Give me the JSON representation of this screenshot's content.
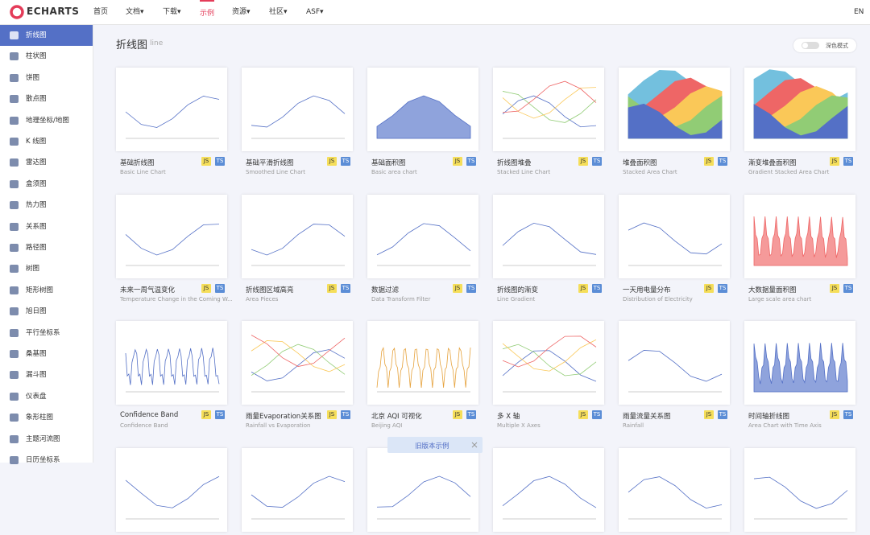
{
  "nav": {
    "logo": "ECHARTS",
    "items": [
      "首页",
      "文档▾",
      "下载▾",
      "示例",
      "资源▾",
      "社区▾",
      "ASF▾"
    ],
    "active": 3,
    "lang": "EN"
  },
  "sidebar": {
    "items": [
      "折线图",
      "柱状图",
      "饼图",
      "散点图",
      "地理坐标/地图",
      "K 线图",
      "雷达图",
      "盒须图",
      "热力图",
      "关系图",
      "路径图",
      "树图",
      "矩形树图",
      "旭日图",
      "平行坐标系",
      "桑基图",
      "漏斗图",
      "仪表盘",
      "象形柱图",
      "主题河流图",
      "日历坐标系"
    ],
    "active": 0
  },
  "header": {
    "title": "折线图",
    "subtitle": "line",
    "dark_mode": "深色模式"
  },
  "badges": [
    "JS",
    "TS"
  ],
  "cards": [
    {
      "title": "基础折线图",
      "subtitle": "Basic Line Chart"
    },
    {
      "title": "基础平滑折线图",
      "subtitle": "Smoothed Line Chart"
    },
    {
      "title": "基础面积图",
      "subtitle": "Basic area chart"
    },
    {
      "title": "折线图堆叠",
      "subtitle": "Stacked Line Chart"
    },
    {
      "title": "堆叠面积图",
      "subtitle": "Stacked Area Chart"
    },
    {
      "title": "渐变堆叠面积图",
      "subtitle": "Gradient Stacked Area Chart"
    },
    {
      "title": "未来一周气温变化",
      "subtitle": "Temperature Change in the Coming W..."
    },
    {
      "title": "折线图区域高亮",
      "subtitle": "Area Pieces"
    },
    {
      "title": "数据过滤",
      "subtitle": "Data Transform Filter"
    },
    {
      "title": "折线图的渐变",
      "subtitle": "Line Gradient"
    },
    {
      "title": "一天用电量分布",
      "subtitle": "Distribution of Electricity"
    },
    {
      "title": "大数据量面积图",
      "subtitle": "Large scale area chart"
    },
    {
      "title": "Confidence Band",
      "subtitle": "Confidence Band"
    },
    {
      "title": "雨量Evaporation关系图",
      "subtitle": "Rainfall vs Evaporation"
    },
    {
      "title": "北京 AQI 可视化",
      "subtitle": "Beijing AQI"
    },
    {
      "title": "多 X 轴",
      "subtitle": "Multiple X Axes"
    },
    {
      "title": "雨量流量关系图",
      "subtitle": "Rainfall"
    },
    {
      "title": "时间轴折线图",
      "subtitle": "Area Chart with Time Axis"
    }
  ],
  "old_version": "旧版本示例"
}
